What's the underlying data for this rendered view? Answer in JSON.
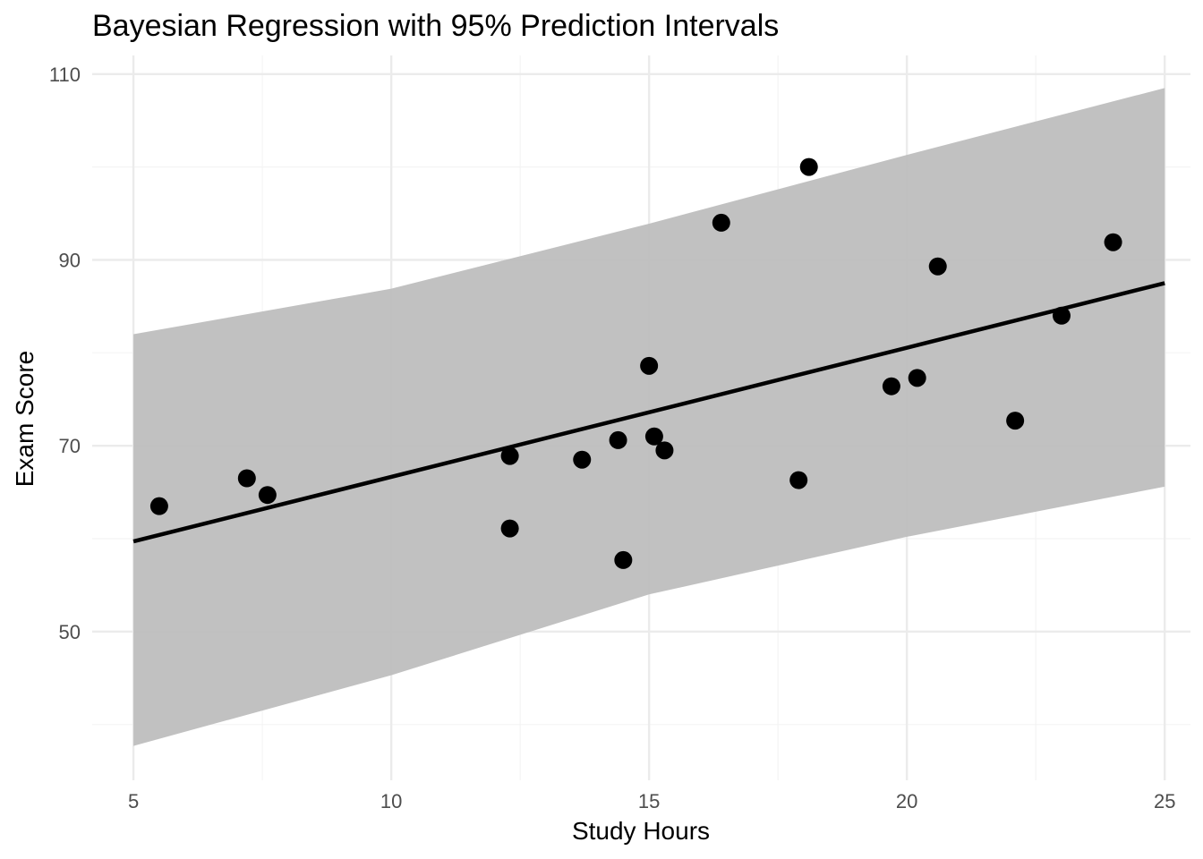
{
  "chart_data": {
    "type": "scatter",
    "title": "Bayesian Regression with 95% Prediction Intervals",
    "xlabel": "Study Hours",
    "ylabel": "Exam Score",
    "xlim": [
      4.2,
      25.5
    ],
    "ylim": [
      34,
      112
    ],
    "x_ticks": [
      5,
      10,
      15,
      20,
      25
    ],
    "x_tick_labels": [
      "5",
      "10",
      "15",
      "20",
      "25"
    ],
    "x_minor": [
      7.5,
      12.5,
      17.5,
      22.5
    ],
    "y_ticks": [
      50,
      70,
      90,
      110
    ],
    "y_tick_labels": [
      "50",
      "70",
      "90",
      "110"
    ],
    "y_minor": [
      40,
      60,
      80,
      100
    ],
    "grid": true,
    "colors": {
      "points": "#000000",
      "fit_line": "#000000",
      "interval_band": "#bebebe",
      "grid_major": "#ebebeb",
      "grid_minor": "#f4f4f4"
    },
    "points": [
      {
        "x": 5.5,
        "y": 63.5
      },
      {
        "x": 7.2,
        "y": 66.5
      },
      {
        "x": 7.6,
        "y": 64.7
      },
      {
        "x": 12.3,
        "y": 68.9
      },
      {
        "x": 12.3,
        "y": 61.1
      },
      {
        "x": 13.7,
        "y": 68.5
      },
      {
        "x": 14.4,
        "y": 70.6
      },
      {
        "x": 14.5,
        "y": 57.7
      },
      {
        "x": 15.0,
        "y": 78.6
      },
      {
        "x": 15.1,
        "y": 71.0
      },
      {
        "x": 15.3,
        "y": 69.5
      },
      {
        "x": 16.4,
        "y": 94.0
      },
      {
        "x": 17.9,
        "y": 66.3
      },
      {
        "x": 18.1,
        "y": 100.0
      },
      {
        "x": 19.7,
        "y": 76.4
      },
      {
        "x": 20.2,
        "y": 77.3
      },
      {
        "x": 20.6,
        "y": 89.3
      },
      {
        "x": 22.1,
        "y": 72.7
      },
      {
        "x": 23.0,
        "y": 84.0
      },
      {
        "x": 24.0,
        "y": 91.9
      }
    ],
    "fit_line": {
      "x": [
        5,
        25
      ],
      "y": [
        59.7,
        87.5
      ]
    },
    "interval": {
      "x": [
        5,
        10,
        15,
        20,
        25
      ],
      "lower": [
        37.7,
        45.3,
        54.0,
        60.2,
        65.6
      ],
      "upper": [
        82.0,
        86.9,
        93.9,
        101.3,
        108.5
      ]
    }
  }
}
